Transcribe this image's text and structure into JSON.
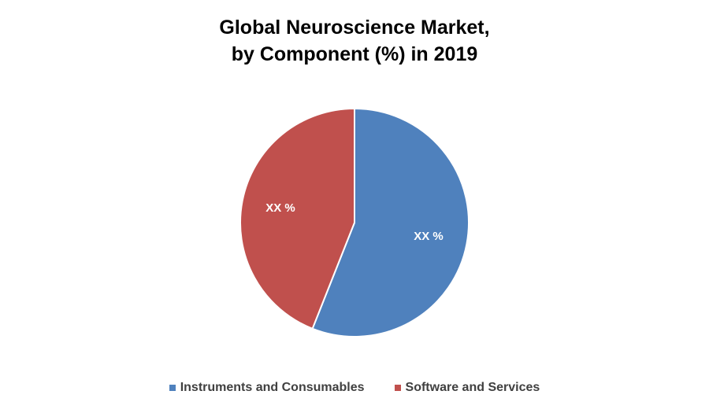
{
  "chart_data": {
    "type": "pie",
    "title": [
      "Global Neuroscience Market,",
      "by Component (%) in 2019"
    ],
    "categories": [
      "Instruments and Consumables",
      "Software and Services"
    ],
    "values": [
      56,
      44
    ],
    "data_labels": [
      "XX %",
      "XX %"
    ],
    "colors": [
      "#4f81bd",
      "#c0504d"
    ],
    "legend_position": "bottom"
  }
}
